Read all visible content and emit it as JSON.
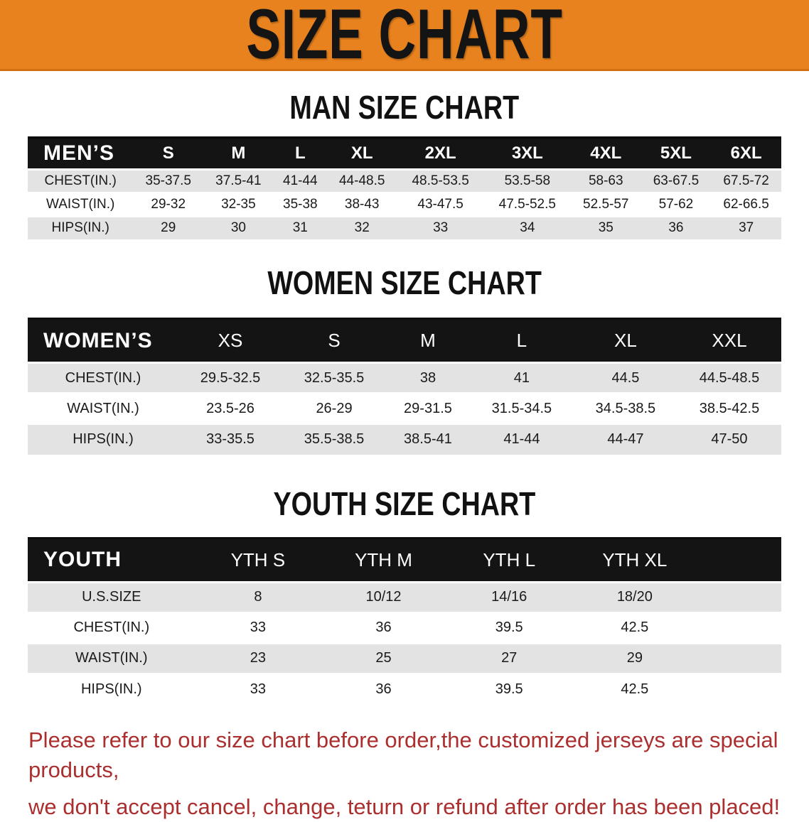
{
  "banner": {
    "title": "SIZE CHART"
  },
  "colors": {
    "banner_bg": "#E8821E",
    "table_header_bg": "#141414",
    "row_stripe": "#E3E3E3",
    "footer_text": "#AC2F2F"
  },
  "sections": [
    {
      "heading": "MAN SIZE CHART",
      "table": {
        "header_label": "MEN’S",
        "columns": [
          "S",
          "M",
          "L",
          "XL",
          "2XL",
          "3XL",
          "4XL",
          "5XL",
          "6XL"
        ],
        "rows": [
          {
            "label": "CHEST(IN.)",
            "values": [
              "35-37.5",
              "37.5-41",
              "41-44",
              "44-48.5",
              "48.5-53.5",
              "53.5-58",
              "58-63",
              "63-67.5",
              "67.5-72"
            ]
          },
          {
            "label": "WAIST(IN.)",
            "values": [
              "29-32",
              "32-35",
              "35-38",
              "38-43",
              "43-47.5",
              "47.5-52.5",
              "52.5-57",
              "57-62",
              "62-66.5"
            ]
          },
          {
            "label": "HIPS(IN.)",
            "values": [
              "29",
              "30",
              "31",
              "32",
              "33",
              "34",
              "35",
              "36",
              "37"
            ]
          }
        ]
      }
    },
    {
      "heading": "WOMEN SIZE CHART",
      "table": {
        "header_label": "WOMEN’S",
        "columns": [
          "XS",
          "S",
          "M",
          "L",
          "XL",
          "XXL"
        ],
        "rows": [
          {
            "label": "CHEST(IN.)",
            "values": [
              "29.5-32.5",
              "32.5-35.5",
              "38",
              "41",
              "44.5",
              "44.5-48.5"
            ]
          },
          {
            "label": "WAIST(IN.)",
            "values": [
              "23.5-26",
              "26-29",
              "29-31.5",
              "31.5-34.5",
              "34.5-38.5",
              "38.5-42.5"
            ]
          },
          {
            "label": "HIPS(IN.)",
            "values": [
              "33-35.5",
              "35.5-38.5",
              "38.5-41",
              "41-44",
              "44-47",
              "47-50"
            ]
          }
        ]
      }
    },
    {
      "heading": "YOUTH SIZE CHART",
      "table": {
        "header_label": "YOUTH",
        "columns": [
          "YTH S",
          "YTH M",
          "YTH L",
          "YTH XL"
        ],
        "rows": [
          {
            "label": "U.S.SIZE",
            "values": [
              "8",
              "10/12",
              "14/16",
              "18/20"
            ]
          },
          {
            "label": "CHEST(IN.)",
            "values": [
              "33",
              "36",
              "39.5",
              "42.5"
            ]
          },
          {
            "label": "WAIST(IN.)",
            "values": [
              "23",
              "25",
              "27",
              "29"
            ]
          },
          {
            "label": "HIPS(IN.)",
            "values": [
              "33",
              "36",
              "39.5",
              "42.5"
            ]
          }
        ]
      }
    }
  ],
  "footer": {
    "lines": [
      "Please refer to our size chart before order,the customized jerseys are special products,",
      "we don't accept cancel, change, teturn or refund after order has been placed!"
    ]
  }
}
